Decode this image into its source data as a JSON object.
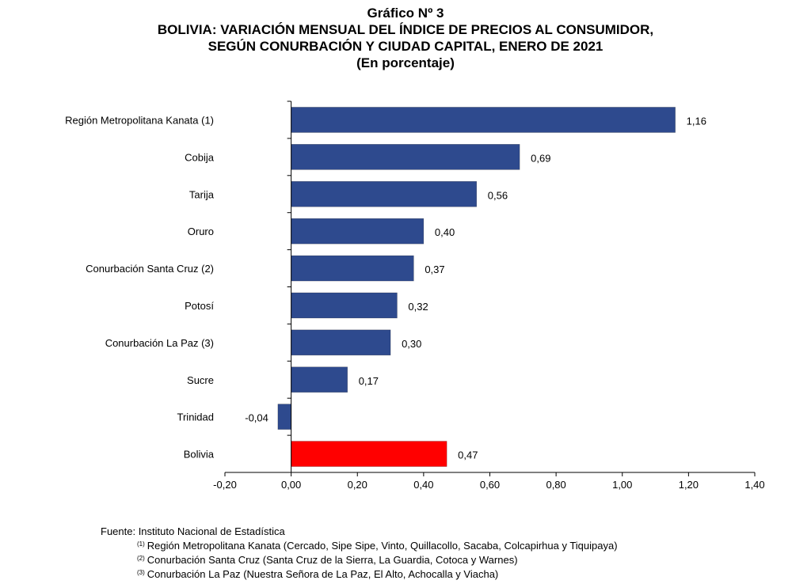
{
  "chart_data": {
    "type": "bar",
    "orientation": "horizontal",
    "title": "Gráfico Nº 3",
    "subtitle_lines": [
      "BOLIVIA: VARIACIÓN MENSUAL DEL ÍNDICE DE PRECIOS AL CONSUMIDOR,",
      "SEGÚN CONURBACIÓN Y CIUDAD CAPITAL, ENERO DE 2021",
      "(En porcentaje)"
    ],
    "categories": [
      "Región Metropolitana Kanata (1)",
      "Cobija",
      "Tarija",
      "Oruro",
      "Conurbación Santa Cruz (2)",
      "Potosí",
      "Conurbación La Paz (3)",
      "Sucre",
      "Trinidad",
      "Bolivia"
    ],
    "values": [
      1.16,
      0.69,
      0.56,
      0.4,
      0.37,
      0.32,
      0.3,
      0.17,
      -0.04,
      0.47
    ],
    "value_labels": [
      "1,16",
      "0,69",
      "0,56",
      "0,40",
      "0,37",
      "0,32",
      "0,30",
      "0,17",
      "-0,04",
      "0,47"
    ],
    "xlim": [
      -0.2,
      1.4
    ],
    "x_ticks": [
      -0.2,
      0.0,
      0.2,
      0.4,
      0.6,
      0.8,
      1.0,
      1.2,
      1.4
    ],
    "x_tick_labels": [
      "-0,20",
      "0,00",
      "0,20",
      "0,40",
      "0,60",
      "0,80",
      "1,00",
      "1,20",
      "1,40"
    ],
    "bar_color": "#2E4A8E",
    "highlight_color": "#FF0000",
    "highlight_category": "Bolivia",
    "grid": false,
    "legend": "none"
  },
  "footer": {
    "source": "Fuente: Instituto Nacional de Estadística",
    "notes": [
      {
        "mark": "(1)",
        "text": "Región Metropolitana Kanata (Cercado, Sipe Sipe, Vinto, Quillacollo, Sacaba, Colcapirhua y Tiquipaya)"
      },
      {
        "mark": "(2)",
        "text": "Conurbación Santa Cruz (Santa Cruz de la Sierra, La Guardia, Cotoca y Warnes)"
      },
      {
        "mark": "(3)",
        "text": "Conurbación La Paz (Nuestra Señora de La Paz, El Alto, Achocalla y Viacha)"
      }
    ]
  }
}
